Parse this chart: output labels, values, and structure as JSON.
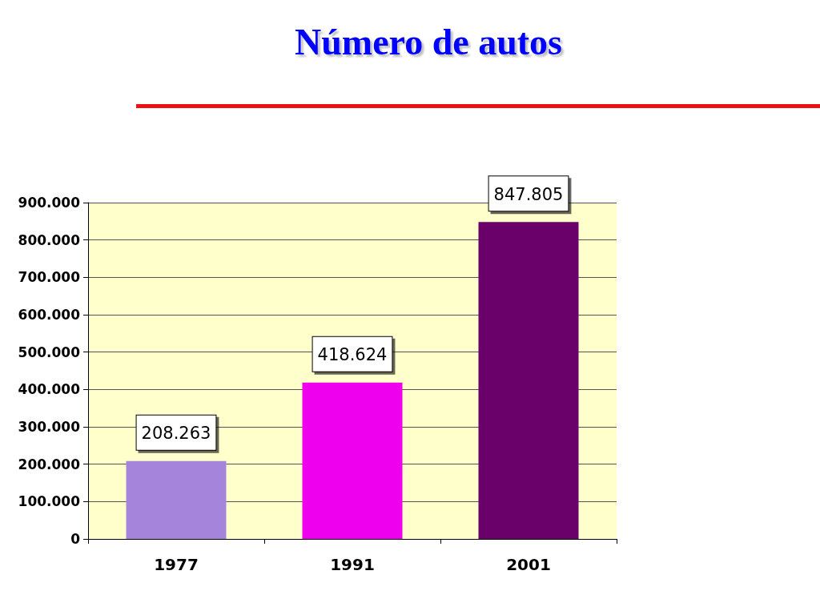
{
  "chart_data": {
    "type": "bar",
    "title": "Número de autos",
    "categories": [
      "1977",
      "1991",
      "2001"
    ],
    "values": [
      208263,
      418624,
      847805
    ],
    "colors": [
      "#a585dc",
      "#ee00ee",
      "#6a006a"
    ],
    "value_labels": [
      "208.263",
      "418.624",
      "847.805"
    ],
    "ylim": [
      0,
      900000
    ],
    "yticks": [
      {
        "value": 0,
        "label": "0"
      },
      {
        "value": 100000,
        "label": "100.000"
      },
      {
        "value": 200000,
        "label": "200.000"
      },
      {
        "value": 300000,
        "label": "300.000"
      },
      {
        "value": 400000,
        "label": "400.000"
      },
      {
        "value": 500000,
        "label": "500.000"
      },
      {
        "value": 600000,
        "label": "600.000"
      },
      {
        "value": 700000,
        "label": "700.000"
      },
      {
        "value": 800000,
        "label": "800.000"
      },
      {
        "value": 900000,
        "label": "900.000"
      }
    ],
    "grid": "y"
  }
}
